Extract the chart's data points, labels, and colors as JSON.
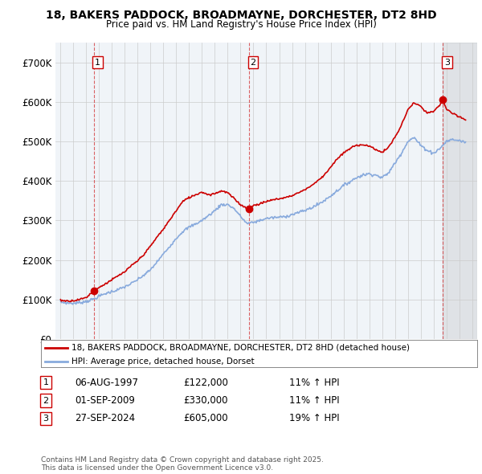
{
  "title": "18, BAKERS PADDOCK, BROADMAYNE, DORCHESTER, DT2 8HD",
  "subtitle": "Price paid vs. HM Land Registry's House Price Index (HPI)",
  "ylim": [
    0,
    750000
  ],
  "yticks": [
    0,
    100000,
    200000,
    300000,
    400000,
    500000,
    600000,
    700000
  ],
  "ytick_labels": [
    "£0",
    "£100K",
    "£200K",
    "£300K",
    "£400K",
    "£500K",
    "£600K",
    "£700K"
  ],
  "xlim_start": 1994.6,
  "xlim_end": 2027.4,
  "xticks": [
    1995,
    1996,
    1997,
    1998,
    1999,
    2000,
    2001,
    2002,
    2003,
    2004,
    2005,
    2006,
    2007,
    2008,
    2009,
    2010,
    2011,
    2012,
    2013,
    2014,
    2015,
    2016,
    2017,
    2018,
    2019,
    2020,
    2021,
    2022,
    2023,
    2024,
    2025,
    2026,
    2027
  ],
  "sale_dates": [
    1997.59,
    2009.67,
    2024.74
  ],
  "sale_prices": [
    122000,
    330000,
    605000
  ],
  "sale_labels": [
    "1",
    "2",
    "3"
  ],
  "legend_red": "18, BAKERS PADDOCK, BROADMAYNE, DORCHESTER, DT2 8HD (detached house)",
  "legend_blue": "HPI: Average price, detached house, Dorset",
  "transactions": [
    {
      "num": "1",
      "date": "06-AUG-1997",
      "price": "£122,000",
      "hpi": "11% ↑ HPI"
    },
    {
      "num": "2",
      "date": "01-SEP-2009",
      "price": "£330,000",
      "hpi": "11% ↑ HPI"
    },
    {
      "num": "3",
      "date": "27-SEP-2024",
      "price": "£605,000",
      "hpi": "19% ↑ HPI"
    }
  ],
  "footnote": "Contains HM Land Registry data © Crown copyright and database right 2025.\nThis data is licensed under the Open Government Licence v3.0.",
  "red_color": "#cc0000",
  "blue_color": "#88aadd",
  "bg_color": "#f0f4f8",
  "grid_color": "#cccccc",
  "hpi_x": [
    1995.0,
    1995.5,
    1996.0,
    1996.5,
    1997.0,
    1997.5,
    1998.0,
    1998.5,
    1999.0,
    1999.5,
    2000.0,
    2000.5,
    2001.0,
    2001.5,
    2002.0,
    2002.5,
    2003.0,
    2003.5,
    2004.0,
    2004.5,
    2005.0,
    2005.5,
    2006.0,
    2006.5,
    2007.0,
    2007.5,
    2008.0,
    2008.5,
    2009.0,
    2009.5,
    2010.0,
    2010.5,
    2011.0,
    2011.5,
    2012.0,
    2012.5,
    2013.0,
    2013.5,
    2014.0,
    2014.5,
    2015.0,
    2015.5,
    2016.0,
    2016.5,
    2017.0,
    2017.5,
    2018.0,
    2018.5,
    2019.0,
    2019.5,
    2020.0,
    2020.5,
    2021.0,
    2021.5,
    2022.0,
    2022.5,
    2023.0,
    2023.5,
    2024.0,
    2024.5,
    2025.0,
    2025.5,
    2026.0,
    2026.5
  ],
  "hpi_y": [
    93000,
    91000,
    90000,
    92000,
    95000,
    100000,
    108000,
    115000,
    120000,
    125000,
    132000,
    140000,
    150000,
    162000,
    175000,
    195000,
    215000,
    235000,
    255000,
    272000,
    283000,
    291000,
    300000,
    312000,
    325000,
    340000,
    340000,
    330000,
    310000,
    292000,
    295000,
    300000,
    305000,
    307000,
    308000,
    310000,
    315000,
    320000,
    325000,
    332000,
    340000,
    350000,
    362000,
    375000,
    388000,
    398000,
    408000,
    415000,
    418000,
    415000,
    408000,
    420000,
    445000,
    470000,
    500000,
    510000,
    490000,
    478000,
    470000,
    482000,
    500000,
    505000,
    502000,
    498000
  ],
  "red_x": [
    1995.0,
    1995.5,
    1996.0,
    1996.5,
    1997.0,
    1997.59,
    1998.0,
    1998.5,
    1999.0,
    1999.5,
    2000.0,
    2000.5,
    2001.0,
    2001.5,
    2002.0,
    2002.5,
    2003.0,
    2003.5,
    2004.0,
    2004.5,
    2005.0,
    2005.5,
    2006.0,
    2006.5,
    2007.0,
    2007.5,
    2008.0,
    2008.5,
    2009.0,
    2009.5,
    2009.67,
    2010.0,
    2010.5,
    2011.0,
    2011.5,
    2012.0,
    2012.5,
    2013.0,
    2013.5,
    2014.0,
    2014.5,
    2015.0,
    2015.5,
    2016.0,
    2016.5,
    2017.0,
    2017.5,
    2018.0,
    2018.5,
    2019.0,
    2019.5,
    2020.0,
    2020.5,
    2021.0,
    2021.5,
    2022.0,
    2022.5,
    2023.0,
    2023.5,
    2024.0,
    2024.5,
    2024.74,
    2025.0,
    2025.5,
    2026.0,
    2026.5
  ],
  "red_y": [
    98000,
    96000,
    97000,
    100000,
    105000,
    122000,
    130000,
    140000,
    150000,
    160000,
    170000,
    185000,
    198000,
    215000,
    235000,
    258000,
    278000,
    302000,
    325000,
    348000,
    358000,
    365000,
    372000,
    365000,
    368000,
    375000,
    370000,
    355000,
    340000,
    330000,
    330000,
    338000,
    342000,
    348000,
    352000,
    355000,
    358000,
    363000,
    370000,
    378000,
    388000,
    400000,
    415000,
    435000,
    455000,
    470000,
    482000,
    490000,
    492000,
    488000,
    480000,
    472000,
    485000,
    510000,
    540000,
    580000,
    598000,
    588000,
    572000,
    575000,
    592000,
    605000,
    582000,
    570000,
    562000,
    555000
  ]
}
